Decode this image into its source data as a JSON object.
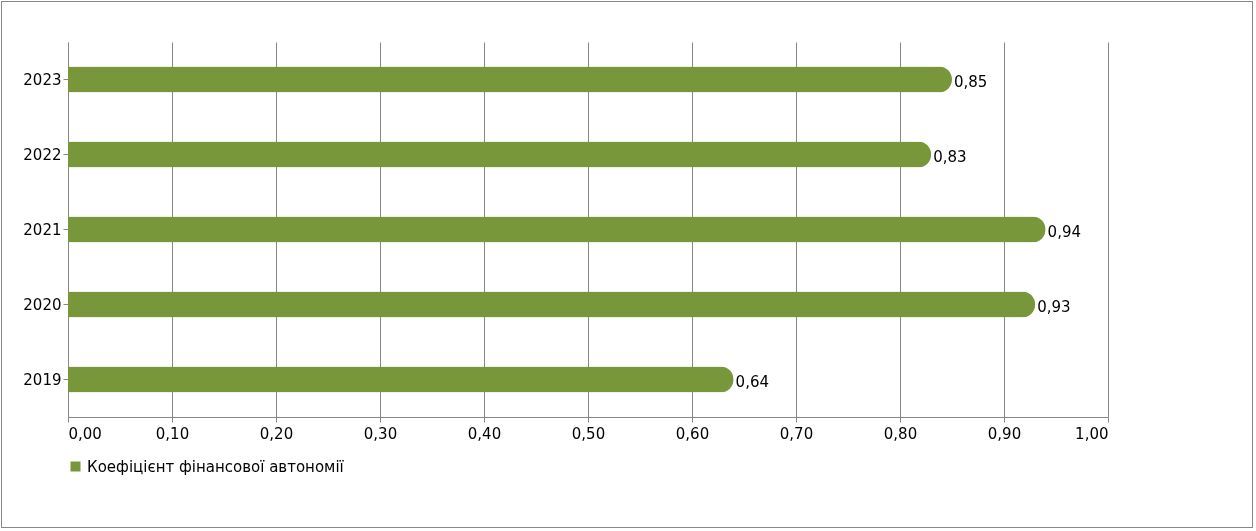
{
  "chart_data": {
    "type": "bar",
    "orientation": "horizontal",
    "categories": [
      "2023",
      "2022",
      "2021",
      "2020",
      "2019"
    ],
    "series": [
      {
        "name": "Коефіцієнт фінансової автономії",
        "color": "#77973a",
        "values": [
          0.85,
          0.83,
          0.94,
          0.93,
          0.64
        ],
        "value_labels": [
          "0,85",
          "0,83",
          "0,94",
          "0,93",
          "0,64"
        ]
      }
    ],
    "xlim": [
      0,
      1
    ],
    "xticks": [
      {
        "value": 0,
        "label": "0,00"
      },
      {
        "value": 0.1,
        "label": "0,10"
      },
      {
        "value": 0.2,
        "label": "0,20"
      },
      {
        "value": 0.3,
        "label": "0,30"
      },
      {
        "value": 0.4,
        "label": "0,40"
      },
      {
        "value": 0.5,
        "label": "0,50"
      },
      {
        "value": 0.6,
        "label": "0,60"
      },
      {
        "value": 0.7,
        "label": "0,70"
      },
      {
        "value": 0.8,
        "label": "0,80"
      },
      {
        "value": 0.9,
        "label": "0,90"
      },
      {
        "value": 1,
        "label": "1,00"
      }
    ],
    "grid": "x",
    "legend": "bottom"
  }
}
